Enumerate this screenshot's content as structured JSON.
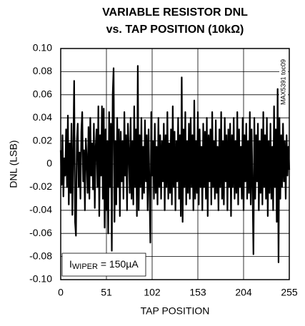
{
  "chart_data": {
    "type": "line",
    "title": [
      "VARIABLE RESISTOR DNL",
      "vs. TAP POSITION (10kΩ)"
    ],
    "x_label": "TAP POSITION",
    "y_label": "DNL (LSB)",
    "side_note": "MAX5391 toc09",
    "annotation": {
      "main": "I",
      "sub": "WIPER",
      "rest": " = 150µA"
    },
    "xlim": [
      0,
      255
    ],
    "xticks": [
      0,
      51,
      102,
      153,
      204,
      255
    ],
    "ylim": [
      -0.1,
      0.1
    ],
    "yticks": [
      {
        "value": 0.1,
        "label": "0.10"
      },
      0.08,
      0.06,
      0.04,
      0.02,
      0,
      -0.02,
      -0.04,
      -0.06,
      -0.08,
      {
        "value": -0.1,
        "label": "-0.10"
      }
    ],
    "grid": true,
    "x": [
      0,
      1,
      2,
      3,
      4,
      5,
      6,
      7,
      8,
      9,
      10,
      11,
      12,
      13,
      14,
      15,
      16,
      17,
      18,
      19,
      20,
      21,
      22,
      23,
      24,
      25,
      26,
      27,
      28,
      29,
      30,
      31,
      32,
      33,
      34,
      35,
      36,
      37,
      38,
      39,
      40,
      41,
      42,
      43,
      44,
      45,
      46,
      47,
      48,
      49,
      50,
      51,
      52,
      53,
      54,
      55,
      56,
      57,
      58,
      59,
      60,
      61,
      62,
      63,
      64,
      65,
      66,
      67,
      68,
      69,
      70,
      71,
      72,
      73,
      74,
      75,
      76,
      77,
      78,
      79,
      80,
      81,
      82,
      83,
      84,
      85,
      86,
      87,
      88,
      89,
      90,
      91,
      92,
      93,
      94,
      95,
      96,
      97,
      98,
      99,
      100,
      101,
      102,
      103,
      104,
      105,
      106,
      107,
      108,
      109,
      110,
      111,
      112,
      113,
      114,
      115,
      116,
      117,
      118,
      119,
      120,
      121,
      122,
      123,
      124,
      125,
      126,
      127,
      128,
      129,
      130,
      131,
      132,
      133,
      134,
      135,
      136,
      137,
      138,
      139,
      140,
      141,
      142,
      143,
      144,
      145,
      146,
      147,
      148,
      149,
      150,
      151,
      152,
      153,
      154,
      155,
      156,
      157,
      158,
      159,
      160,
      161,
      162,
      163,
      164,
      165,
      166,
      167,
      168,
      169,
      170,
      171,
      172,
      173,
      174,
      175,
      176,
      177,
      178,
      179,
      180,
      181,
      182,
      183,
      184,
      185,
      186,
      187,
      188,
      189,
      190,
      191,
      192,
      193,
      194,
      195,
      196,
      197,
      198,
      199,
      200,
      201,
      202,
      203,
      204,
      205,
      206,
      207,
      208,
      209,
      210,
      211,
      212,
      213,
      214,
      215,
      216,
      217,
      218,
      219,
      220,
      221,
      222,
      223,
      224,
      225,
      226,
      227,
      228,
      229,
      230,
      231,
      232,
      233,
      234,
      235,
      236,
      237,
      238,
      239,
      240,
      241,
      242,
      243,
      244,
      245,
      246,
      247,
      248,
      249,
      250,
      251,
      252,
      253,
      254,
      255
    ],
    "series": [
      {
        "color": "#000000",
        "values": [
          0.012,
          -0.018,
          0.025,
          -0.028,
          0.005,
          -0.01,
          0.03,
          -0.02,
          0.042,
          -0.035,
          0.018,
          -0.025,
          0.035,
          -0.044,
          0.01,
          0.072,
          -0.05,
          -0.062,
          0.02,
          0.035,
          -0.02,
          0.01,
          -0.03,
          0.028,
          0.045,
          -0.015,
          0.012,
          -0.04,
          0.022,
          0.005,
          -0.025,
          0.032,
          -0.03,
          0.04,
          -0.01,
          0.018,
          -0.022,
          0.035,
          -0.038,
          0.015,
          0.03,
          -0.02,
          0.05,
          -0.045,
          0.025,
          -0.01,
          0.05,
          -0.03,
          0.048,
          -0.055,
          0.03,
          -0.04,
          0.02,
          -0.06,
          0.045,
          -0.02,
          0.035,
          -0.075,
          0.06,
          0.083,
          -0.05,
          0.02,
          -0.035,
          0.04,
          -0.02,
          0.03,
          -0.045,
          0.028,
          -0.015,
          0.02,
          -0.03,
          0.045,
          -0.01,
          0.025,
          -0.04,
          0.035,
          0.01,
          -0.025,
          0.04,
          -0.03,
          0.02,
          -0.035,
          0.05,
          -0.02,
          0.03,
          -0.045,
          0.085,
          -0.04,
          0.025,
          -0.02,
          0.04,
          -0.03,
          0.015,
          -0.025,
          0.038,
          -0.015,
          0.025,
          -0.04,
          0.03,
          -0.02,
          -0.068,
          0.045,
          -0.01,
          0.02,
          -0.03,
          0.035,
          -0.025,
          0.015,
          -0.035,
          0.04,
          -0.02,
          0.025,
          -0.03,
          0.02,
          -0.015,
          0.035,
          -0.04,
          0.025,
          -0.02,
          0.045,
          -0.03,
          0.018,
          -0.025,
          0.03,
          -0.035,
          0.05,
          -0.02,
          0.028,
          -0.04,
          0.02,
          -0.015,
          0.04,
          -0.03,
          0.025,
          -0.045,
          0.075,
          -0.05,
          0.03,
          -0.02,
          0.045,
          -0.035,
          0.02,
          -0.025,
          0.035,
          -0.03,
          0.04,
          -0.02,
          0.025,
          -0.04,
          0.055,
          -0.03,
          0.02,
          -0.025,
          0.045,
          -0.035,
          0.03,
          -0.02,
          0.015,
          -0.04,
          0.035,
          -0.02,
          0.028,
          -0.03,
          0.04,
          -0.045,
          0.025,
          -0.015,
          0.03,
          -0.035,
          0.045,
          -0.02,
          0.02,
          -0.03,
          0.038,
          -0.025,
          0.015,
          -0.04,
          0.03,
          -0.02,
          0.045,
          -0.03,
          0.02,
          -0.035,
          0.04,
          -0.015,
          0.025,
          -0.04,
          0.03,
          -0.02,
          0.035,
          -0.045,
          0.025,
          -0.02,
          0.04,
          -0.03,
          0.02,
          -0.025,
          0.045,
          -0.035,
          0.03,
          -0.02,
          0.015,
          -0.03,
          0.04,
          -0.04,
          0.025,
          -0.015,
          0.035,
          -0.03,
          0.02,
          -0.025,
          0.045,
          -0.035,
          0.03,
          -0.02,
          -0.078,
          0.04,
          -0.03,
          0.025,
          -0.015,
          0.035,
          -0.04,
          0.02,
          -0.025,
          0.03,
          -0.035,
          0.045,
          -0.02,
          0.025,
          -0.03,
          0.04,
          -0.045,
          0.02,
          -0.025,
          0.035,
          -0.03,
          0.015,
          -0.04,
          0.05,
          -0.02,
          0.03,
          -0.05,
          0.065,
          -0.085,
          0.04,
          -0.03,
          0.025,
          -0.02,
          0.035,
          -0.015,
          0.02,
          -0.03,
          0.025,
          -0.01,
          0.015,
          -0.005
        ]
      }
    ]
  }
}
